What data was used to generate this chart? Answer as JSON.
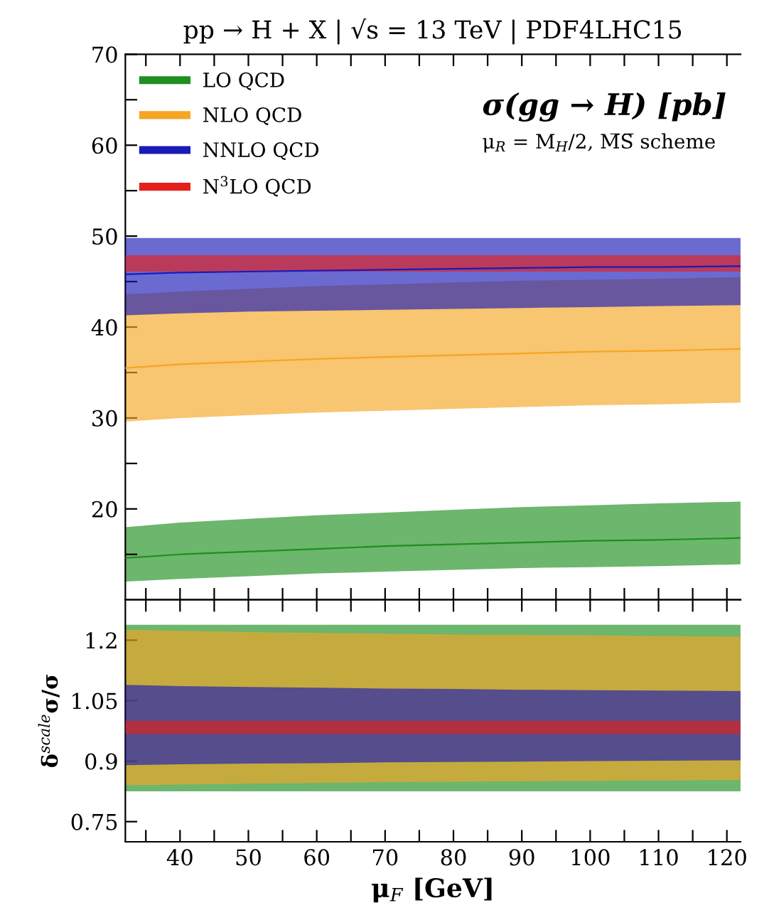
{
  "chart_data": [
    {
      "type": "line",
      "title": "pp → H + X | √s = 13 TeV | PDF4LHC15",
      "annotations": [
        "σ(gg → H) [pb]",
        "μ$_{R}$ = M$_{H}$/2, M̅S̅ scheme"
      ],
      "xlim": [
        32,
        122
      ],
      "xticks": [
        {
          "value": 35,
          "label": null
        },
        40,
        {
          "value": 45,
          "label": null
        },
        50,
        {
          "value": 55,
          "label": null
        },
        60,
        {
          "value": 65,
          "label": null
        },
        70,
        {
          "value": 75,
          "label": null
        },
        80,
        {
          "value": 85,
          "label": null
        },
        90,
        {
          "value": 95,
          "label": null
        },
        100,
        {
          "value": 105,
          "label": null
        },
        110,
        {
          "value": 115,
          "label": null
        },
        120
      ],
      "ylim": [
        10,
        70
      ],
      "yticks": [
        {
          "value": 15,
          "label": null
        },
        20,
        {
          "value": 25,
          "label": null
        },
        30,
        {
          "value": 35,
          "label": null
        },
        40,
        {
          "value": 45,
          "label": null
        },
        50,
        {
          "value": 55,
          "label": null
        },
        60,
        {
          "value": 65,
          "label": null
        },
        70
      ],
      "tick_labels": "y",
      "legend": "top left",
      "grid": false,
      "x": [
        32,
        40,
        50,
        60,
        70,
        80,
        90,
        100,
        110,
        122
      ],
      "series": [
        {
          "name": "LO QCD",
          "color": "#1f8f1f",
          "values": [
            14.6,
            15.0,
            15.3,
            15.6,
            15.9,
            16.1,
            16.3,
            16.5,
            16.6,
            16.8
          ],
          "lower": [
            12.0,
            12.3,
            12.6,
            12.9,
            13.1,
            13.3,
            13.5,
            13.6,
            13.7,
            13.9
          ],
          "upper": [
            18.0,
            18.5,
            18.9,
            19.3,
            19.6,
            19.9,
            20.2,
            20.4,
            20.6,
            20.8
          ]
        },
        {
          "name": "NLO QCD",
          "color": "#f5a623",
          "values": [
            35.5,
            35.9,
            36.2,
            36.5,
            36.7,
            36.9,
            37.1,
            37.3,
            37.4,
            37.6
          ],
          "lower": [
            29.6,
            30.0,
            30.3,
            30.6,
            30.8,
            31.0,
            31.2,
            31.4,
            31.5,
            31.7
          ],
          "upper": [
            43.6,
            43.9,
            44.2,
            44.5,
            44.7,
            44.9,
            45.1,
            45.2,
            45.3,
            45.5
          ]
        },
        {
          "name": "NNLO QCD",
          "color": "#1a1ab8",
          "values": [
            45.8,
            46.0,
            46.1,
            46.2,
            46.3,
            46.4,
            46.5,
            46.6,
            46.6,
            46.7
          ],
          "lower": [
            41.3,
            41.5,
            41.7,
            41.8,
            41.9,
            42.0,
            42.1,
            42.2,
            42.3,
            42.4
          ],
          "upper": [
            49.8,
            49.8,
            49.8,
            49.8,
            49.8,
            49.8,
            49.8,
            49.8,
            49.8,
            49.8
          ]
        },
        {
          "name": "N$^{3}$LO QCD",
          "color": "#e5201c",
          "values": [
            null,
            null,
            null,
            null,
            null,
            null,
            null,
            null,
            null,
            null
          ],
          "lower": [
            46.1,
            46.1,
            46.1,
            46.1,
            46.1,
            46.1,
            46.1,
            46.1,
            46.1,
            46.1
          ],
          "upper": [
            47.9,
            47.9,
            47.9,
            47.9,
            47.9,
            47.9,
            47.9,
            47.9,
            47.9,
            47.9
          ]
        }
      ]
    },
    {
      "type": "line",
      "xlabel": "μ$_{F}$ [GeV]",
      "ylabel": "δ$^{scale}$σ/σ",
      "xlim": [
        32,
        122
      ],
      "xticks": [
        {
          "value": 35,
          "label": null
        },
        40,
        {
          "value": 45,
          "label": null
        },
        50,
        {
          "value": 55,
          "label": null
        },
        60,
        {
          "value": 65,
          "label": null
        },
        70,
        {
          "value": 75,
          "label": null
        },
        80,
        {
          "value": 85,
          "label": null
        },
        90,
        {
          "value": 95,
          "label": null
        },
        100,
        {
          "value": 105,
          "label": null
        },
        110,
        {
          "value": 115,
          "label": null
        },
        120
      ],
      "ylim": [
        0.7,
        1.3
      ],
      "yticks": [
        0.75,
        0.9,
        1.05,
        1.2
      ],
      "grid": false,
      "x": [
        32,
        40,
        50,
        60,
        70,
        80,
        90,
        100,
        110,
        122
      ],
      "series": [
        {
          "color": "#1f8f1f",
          "values": [
            null,
            null,
            null,
            null,
            null,
            null,
            null,
            null,
            null,
            null
          ],
          "lower": [
            0.825,
            0.825,
            0.825,
            0.825,
            0.825,
            0.825,
            0.825,
            0.825,
            0.825,
            0.825
          ],
          "upper": [
            1.238,
            1.238,
            1.238,
            1.238,
            1.238,
            1.238,
            1.238,
            1.238,
            1.238,
            1.238
          ]
        },
        {
          "color": "#f5a623",
          "values": [
            null,
            null,
            null,
            null,
            null,
            null,
            null,
            null,
            null,
            null
          ],
          "lower": [
            0.84,
            0.842,
            0.844,
            0.846,
            0.848,
            0.849,
            0.85,
            0.851,
            0.852,
            0.853
          ],
          "upper": [
            1.226,
            1.223,
            1.22,
            1.218,
            1.216,
            1.214,
            1.213,
            1.212,
            1.21,
            1.209
          ]
        },
        {
          "color": "#1a1ab8",
          "values": [
            null,
            null,
            null,
            null,
            null,
            null,
            null,
            null,
            null,
            null
          ],
          "lower": [
            0.89,
            0.892,
            0.894,
            0.895,
            0.897,
            0.898,
            0.899,
            0.9,
            0.901,
            0.902
          ],
          "upper": [
            1.089,
            1.086,
            1.084,
            1.082,
            1.08,
            1.079,
            1.077,
            1.076,
            1.075,
            1.074
          ]
        },
        {
          "color": "#e5201c",
          "values": [
            null,
            null,
            null,
            null,
            null,
            null,
            null,
            null,
            null,
            null
          ],
          "lower": [
            0.967,
            0.967,
            0.967,
            0.967,
            0.967,
            0.967,
            0.967,
            0.967,
            0.967,
            0.967
          ],
          "upper": [
            1.0,
            1.0,
            1.0,
            1.0,
            1.0,
            1.0,
            1.0,
            1.0,
            1.0,
            1.0
          ]
        }
      ]
    }
  ]
}
